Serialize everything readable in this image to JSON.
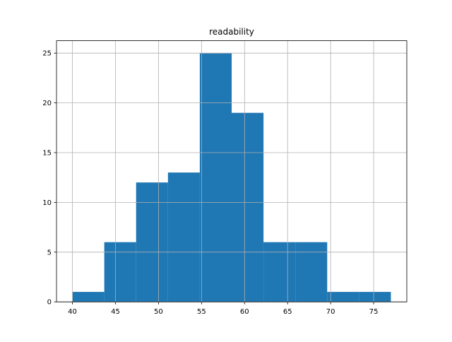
{
  "chart_data": {
    "type": "histogram",
    "title": "readability",
    "bins": [
      40,
      43.7,
      47.4,
      51.1,
      54.8,
      58.5,
      62.2,
      65.9,
      69.6,
      73.3,
      77
    ],
    "values": [
      1,
      6,
      12,
      13,
      25,
      19,
      6,
      6,
      1,
      1
    ],
    "color": "#1f77b4",
    "xlim": [
      38.15,
      78.85
    ],
    "xticks": [
      40,
      45,
      50,
      55,
      60,
      65,
      70,
      75
    ],
    "ylim": [
      0,
      26.25
    ],
    "yticks": [
      0,
      5,
      10,
      15,
      20,
      25
    ],
    "grid": true
  }
}
